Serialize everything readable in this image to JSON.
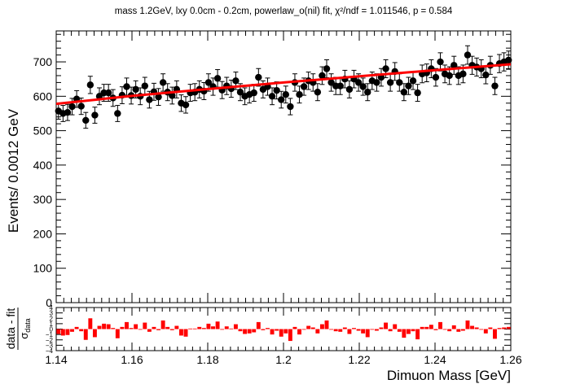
{
  "chart_data": [
    {
      "type": "scatter",
      "title": "mass 1.2GeV, lxy 0.0cm - 0.2cm, powerlaw_o(nil) fit, χ²/ndf = 1.011546, p = 0.584",
      "xlabel": "",
      "ylabel": "Events/ 0.0012 GeV",
      "xlim": [
        1.14,
        1.26
      ],
      "ylim": [
        0,
        790
      ],
      "yticks": [
        "0",
        "100",
        "200",
        "300",
        "400",
        "500",
        "600",
        "700"
      ],
      "grid": false,
      "series": [
        {
          "style": "points-with-errorbars",
          "color": "#000000",
          "x": [
            1.1406,
            1.1418,
            1.143,
            1.1442,
            1.1454,
            1.1466,
            1.1478,
            1.149,
            1.1502,
            1.1514,
            1.1526,
            1.1538,
            1.155,
            1.1562,
            1.1574,
            1.1586,
            1.1598,
            1.161,
            1.1622,
            1.1634,
            1.1646,
            1.1658,
            1.167,
            1.1682,
            1.1694,
            1.1706,
            1.1718,
            1.173,
            1.1742,
            1.1754,
            1.1766,
            1.1778,
            1.179,
            1.1802,
            1.1814,
            1.1826,
            1.1838,
            1.185,
            1.1862,
            1.1874,
            1.1886,
            1.1898,
            1.191,
            1.1922,
            1.1934,
            1.1946,
            1.1958,
            1.197,
            1.1982,
            1.1994,
            1.2006,
            1.2018,
            1.203,
            1.2042,
            1.2054,
            1.2066,
            1.2078,
            1.209,
            1.2102,
            1.2114,
            1.2126,
            1.2138,
            1.215,
            1.2162,
            1.2174,
            1.2186,
            1.2198,
            1.221,
            1.2222,
            1.2234,
            1.2246,
            1.2258,
            1.227,
            1.2282,
            1.2294,
            1.2306,
            1.2318,
            1.233,
            1.2342,
            1.2354,
            1.2366,
            1.2378,
            1.239,
            1.2402,
            1.2414,
            1.2426,
            1.2438,
            1.245,
            1.2462,
            1.2474,
            1.2486,
            1.2498,
            1.251,
            1.2522,
            1.2534,
            1.2546,
            1.2558,
            1.257,
            1.2582,
            1.2594
          ],
          "y": [
            557,
            550,
            553,
            570,
            592,
            571,
            530,
            633,
            545,
            600,
            610,
            610,
            595,
            550,
            603,
            628,
            602,
            620,
            600,
            630,
            590,
            613,
            598,
            640,
            612,
            602,
            620,
            580,
            575,
            610,
            612,
            620,
            615,
            640,
            628,
            652,
            618,
            630,
            622,
            645,
            612,
            600,
            605,
            610,
            655,
            620,
            628,
            600,
            617,
            590,
            605,
            570,
            640,
            605,
            628,
            645,
            640,
            612,
            660,
            680,
            640,
            630,
            630,
            650,
            620,
            650,
            640,
            628,
            612,
            645,
            640,
            655,
            680,
            640,
            672,
            640,
            612,
            630,
            645,
            610,
            665,
            668,
            680,
            655,
            700,
            665,
            660,
            690,
            660,
            665,
            720,
            690,
            685,
            680,
            662,
            690,
            630,
            695,
            700,
            705
          ]
        }
      ]
    },
    {
      "type": "line",
      "title": "",
      "xlabel": "",
      "ylabel": "",
      "xlim": [
        1.14,
        1.26
      ],
      "ylim": [
        580,
        700
      ],
      "series": [
        {
          "style": "fit-curve",
          "color": "#ff0000",
          "x": [
            1.14,
            1.16,
            1.18,
            1.2,
            1.22,
            1.24,
            1.26
          ],
          "y": [
            578,
            601,
            621,
            640,
            658,
            676,
            693
          ]
        }
      ]
    },
    {
      "type": "bar",
      "title": "",
      "xlabel": "Dimuon Mass [GeV]",
      "ylabel": "data - fit / σ data",
      "xlim": [
        1.14,
        1.26
      ],
      "ylim": [
        -4,
        4
      ],
      "xticks": [
        "1.14",
        "1.16",
        "1.18",
        "1.2",
        "1.22",
        "1.24",
        "1.26"
      ],
      "yticks": [
        "4",
        "3",
        "2",
        "1",
        "0",
        "−1",
        "−2",
        "−3",
        "−4"
      ],
      "series": [
        {
          "color": "#ff0000",
          "x": [
            1.1406,
            1.1418,
            1.143,
            1.1442,
            1.1454,
            1.1466,
            1.1478,
            1.149,
            1.1502,
            1.1514,
            1.1526,
            1.1538,
            1.155,
            1.1562,
            1.1574,
            1.1586,
            1.1598,
            1.161,
            1.1622,
            1.1634,
            1.1646,
            1.1658,
            1.167,
            1.1682,
            1.1694,
            1.1706,
            1.1718,
            1.173,
            1.1742,
            1.1754,
            1.1766,
            1.1778,
            1.179,
            1.1802,
            1.1814,
            1.1826,
            1.1838,
            1.185,
            1.1862,
            1.1874,
            1.1886,
            1.1898,
            1.191,
            1.1922,
            1.1934,
            1.1946,
            1.1958,
            1.197,
            1.1982,
            1.1994,
            1.2006,
            1.2018,
            1.203,
            1.2042,
            1.2054,
            1.2066,
            1.2078,
            1.209,
            1.2102,
            1.2114,
            1.2126,
            1.2138,
            1.215,
            1.2162,
            1.2174,
            1.2186,
            1.2198,
            1.221,
            1.2222,
            1.2234,
            1.2246,
            1.2258,
            1.227,
            1.2282,
            1.2294,
            1.2306,
            1.2318,
            1.233,
            1.2342,
            1.2354,
            1.2366,
            1.2378,
            1.239,
            1.2402,
            1.2414,
            1.2426,
            1.2438,
            1.245,
            1.2462,
            1.2474,
            1.2486,
            1.2498,
            1.251,
            1.2522,
            1.2534,
            1.2546,
            1.2558,
            1.257,
            1.2582,
            1.2594
          ],
          "values": [
            -0.9,
            -1.2,
            -1.1,
            -0.5,
            0.4,
            -0.4,
            -2.0,
            2.0,
            -1.5,
            0.6,
            1.0,
            0.9,
            0.2,
            -1.7,
            0.4,
            1.3,
            0.2,
            0.9,
            0.0,
            1.2,
            -0.5,
            0.4,
            -0.2,
            1.6,
            0.4,
            -0.2,
            0.6,
            -1.2,
            -1.4,
            0.1,
            0.1,
            0.4,
            0.2,
            1.0,
            0.5,
            1.4,
            0.0,
            0.5,
            0.1,
            0.9,
            -0.4,
            -0.9,
            -0.8,
            -0.6,
            1.3,
            -0.2,
            0.2,
            -1.0,
            -0.3,
            -1.4,
            -0.8,
            -2.2,
            0.4,
            -1.0,
            -0.1,
            0.6,
            0.3,
            -0.8,
            0.9,
            1.6,
            0.0,
            -0.4,
            -0.5,
            0.3,
            -0.9,
            0.2,
            -0.3,
            -0.8,
            -1.5,
            -0.1,
            -0.3,
            0.3,
            1.2,
            -0.4,
            0.9,
            -0.5,
            -1.6,
            -0.9,
            -0.4,
            -1.9,
            0.4,
            0.4,
            0.8,
            -0.2,
            1.3,
            -0.1,
            -0.4,
            0.7,
            -0.5,
            -0.3,
            1.6,
            0.6,
            0.3,
            0.0,
            -0.8,
            0.3,
            -1.8,
            0.2,
            0.3,
            0.4
          ]
        }
      ]
    }
  ]
}
